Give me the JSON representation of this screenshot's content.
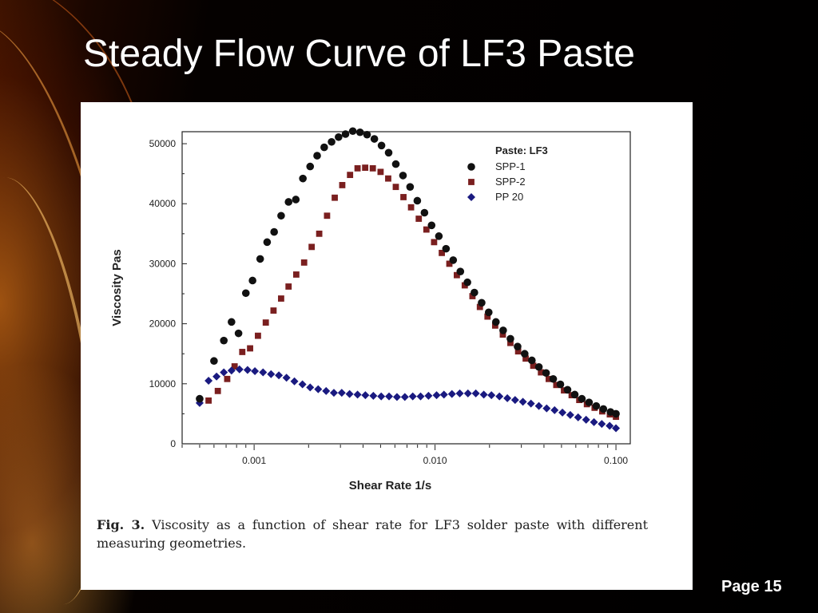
{
  "slide": {
    "title": "Steady Flow Curve of LF3 Paste",
    "page_label": "Page 15"
  },
  "caption": {
    "fig_label": "Fig. 3.",
    "text": "Viscosity as a function of shear rate for LF3 solder paste with different measuring geometries."
  },
  "chart_data": {
    "type": "scatter",
    "xlabel": "Shear Rate 1/s",
    "ylabel": "Viscosity Pas",
    "xscale": "log",
    "xlim": [
      0.0004,
      0.12
    ],
    "ylim": [
      0,
      52000
    ],
    "x_ticks": [
      0.001,
      0.01,
      0.1
    ],
    "x_tick_labels": [
      "0.001",
      "0.010",
      "0.100"
    ],
    "y_ticks": [
      0,
      10000,
      20000,
      30000,
      40000,
      50000
    ],
    "y_tick_labels": [
      "0",
      "10000",
      "20000",
      "30000",
      "40000",
      "50000"
    ],
    "grid": false,
    "legend_title": "Paste: LF3",
    "legend_position": "top-right",
    "series": [
      {
        "name": "SPP-1",
        "marker": "circle",
        "color": "#111111",
        "x": [
          0.0005,
          0.0006,
          0.00068,
          0.00075,
          0.00082,
          0.0009,
          0.00098,
          0.00108,
          0.00118,
          0.00129,
          0.00141,
          0.00155,
          0.0017,
          0.00186,
          0.00204,
          0.00223,
          0.00244,
          0.00268,
          0.00293,
          0.0032,
          0.00351,
          0.00385,
          0.00421,
          0.00462,
          0.00506,
          0.00554,
          0.00607,
          0.00665,
          0.00728,
          0.00798,
          0.00874,
          0.00957,
          0.0105,
          0.0115,
          0.0126,
          0.0138,
          0.0151,
          0.0165,
          0.0181,
          0.0198,
          0.0217,
          0.0238,
          0.0261,
          0.0286,
          0.0313,
          0.0343,
          0.0375,
          0.0411,
          0.045,
          0.0493,
          0.054,
          0.0592,
          0.0648,
          0.071,
          0.0778,
          0.0852,
          0.0933,
          0.1
        ],
        "y": [
          7500,
          13800,
          17200,
          20300,
          18400,
          25100,
          27200,
          30800,
          33600,
          35300,
          38000,
          40300,
          40700,
          44200,
          46200,
          48000,
          49400,
          50300,
          51100,
          51600,
          52100,
          51900,
          51500,
          50800,
          49700,
          48500,
          46600,
          44700,
          42800,
          40500,
          38500,
          36400,
          34600,
          32500,
          30600,
          28700,
          26900,
          25200,
          23500,
          21900,
          20300,
          18900,
          17500,
          16200,
          15000,
          13900,
          12800,
          11800,
          10800,
          9900,
          9000,
          8200,
          7500,
          6900,
          6300,
          5800,
          5300,
          5000
        ]
      },
      {
        "name": "SPP-2",
        "marker": "square",
        "color": "#7a1f1f",
        "x": [
          0.00056,
          0.00063,
          0.00071,
          0.00078,
          0.00086,
          0.00095,
          0.00105,
          0.00116,
          0.00128,
          0.00141,
          0.00155,
          0.00171,
          0.00189,
          0.00208,
          0.00229,
          0.00253,
          0.00279,
          0.00307,
          0.00339,
          0.00373,
          0.00411,
          0.00453,
          0.005,
          0.00551,
          0.00607,
          0.00669,
          0.00737,
          0.00813,
          0.00896,
          0.00988,
          0.0109,
          0.012,
          0.0132,
          0.0146,
          0.0161,
          0.0177,
          0.0195,
          0.0215,
          0.0237,
          0.0261,
          0.0288,
          0.0317,
          0.0349,
          0.0385,
          0.0425,
          0.0468,
          0.0516,
          0.0569,
          0.0627,
          0.0691,
          0.0762,
          0.084,
          0.0925,
          0.1
        ],
        "y": [
          7200,
          8800,
          10800,
          12900,
          15300,
          15900,
          18000,
          20200,
          22200,
          24200,
          26200,
          28200,
          30200,
          32800,
          35000,
          38000,
          41000,
          43100,
          44800,
          45900,
          46000,
          45900,
          45300,
          44200,
          42800,
          41100,
          39400,
          37500,
          35700,
          33600,
          31800,
          30000,
          28100,
          26400,
          24600,
          22800,
          21200,
          19700,
          18200,
          16800,
          15400,
          14200,
          13000,
          11900,
          10800,
          9800,
          8900,
          8100,
          7300,
          6600,
          6000,
          5400,
          4900,
          4500
        ]
      },
      {
        "name": "PP 20",
        "marker": "diamond",
        "color": "#1a1a80",
        "x": [
          0.0005,
          0.00056,
          0.00062,
          0.00068,
          0.00075,
          0.00083,
          0.00092,
          0.00101,
          0.00112,
          0.00124,
          0.00137,
          0.00151,
          0.00167,
          0.00185,
          0.00204,
          0.00226,
          0.0025,
          0.00276,
          0.00305,
          0.00337,
          0.00373,
          0.00412,
          0.00456,
          0.00504,
          0.00557,
          0.00616,
          0.00681,
          0.00753,
          0.00832,
          0.0092,
          0.0102,
          0.0112,
          0.0124,
          0.0137,
          0.0152,
          0.0168,
          0.0186,
          0.0205,
          0.0227,
          0.0251,
          0.0277,
          0.0306,
          0.0339,
          0.0375,
          0.0414,
          0.0458,
          0.0506,
          0.0559,
          0.0618,
          0.0684,
          0.0756,
          0.0835,
          0.0923,
          0.1
        ],
        "y": [
          6800,
          10500,
          11200,
          11900,
          12200,
          12400,
          12300,
          12100,
          11900,
          11600,
          11400,
          11000,
          10400,
          9900,
          9400,
          9100,
          8800,
          8500,
          8500,
          8300,
          8200,
          8100,
          8000,
          7900,
          7900,
          7800,
          7800,
          7900,
          7900,
          8000,
          8100,
          8200,
          8300,
          8400,
          8400,
          8400,
          8200,
          8100,
          7900,
          7600,
          7300,
          7000,
          6700,
          6300,
          5900,
          5600,
          5200,
          4800,
          4400,
          4000,
          3600,
          3300,
          3000,
          2600
        ]
      }
    ]
  }
}
